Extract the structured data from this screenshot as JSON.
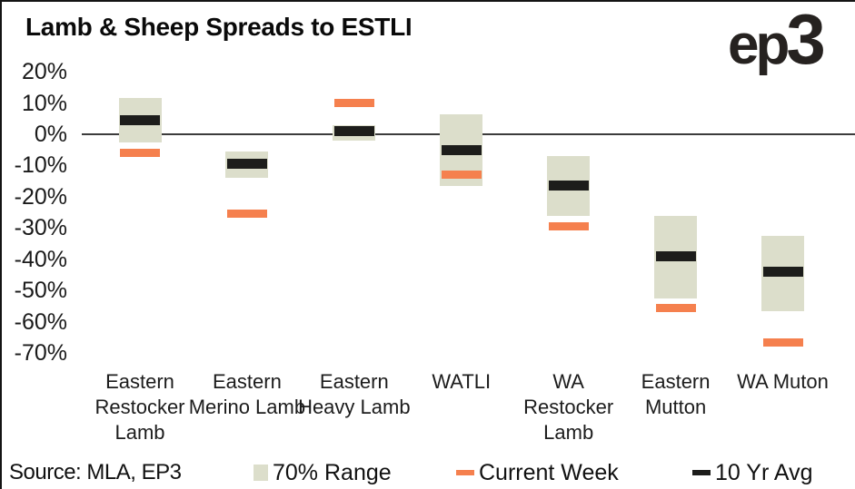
{
  "title": "Lamb & Sheep Spreads to ESTLI",
  "logo_text": {
    "ep": "ep",
    "three": "3"
  },
  "source_text": "Source: MLA, EP3",
  "legend": {
    "items": [
      {
        "label": "70% Range",
        "swatch": "box",
        "color": "#dcdecb"
      },
      {
        "label": "Current Week",
        "swatch": "dash",
        "color": "#f5804e"
      },
      {
        "label": "10 Yr Avg",
        "swatch": "dash",
        "color": "#1d1d1b"
      }
    ]
  },
  "colors": {
    "range_box": "#dcdecb",
    "current_week": "#f5804e",
    "ten_yr_avg": "#1d1d1b",
    "zero_line": "#3c3c3c"
  },
  "chart_data": {
    "type": "bar",
    "subtype": "floating 70%-range bars with current-week and 10yr-average dash markers",
    "title": "Lamb & Sheep Spreads to ESTLI",
    "categories": [
      "Eastern Restocker Lamb",
      "Eastern Merino Lamb",
      "Eastern Heavy Lamb",
      "WATLI",
      "WA Restocker Lamb",
      "Eastern Mutton",
      "WA Muton"
    ],
    "series": [
      {
        "name": "70% Range",
        "type": "range",
        "unit": "%",
        "values": [
          [
            11.5,
            -2.5
          ],
          [
            -5.5,
            -14
          ],
          [
            3,
            -2
          ],
          [
            6.5,
            -16.5
          ],
          [
            -7,
            -26
          ],
          [
            -26,
            -52.5
          ],
          [
            -32.5,
            -56.5
          ]
        ]
      },
      {
        "name": "Current Week",
        "type": "marker",
        "unit": "%",
        "values": [
          -6,
          -25.5,
          10,
          -13,
          -29.5,
          -55.5,
          -66.5
        ]
      },
      {
        "name": "10 Yr Avg",
        "type": "marker",
        "unit": "%",
        "values": [
          4.5,
          -9.5,
          1,
          -5,
          -16.5,
          -39,
          -44
        ]
      }
    ],
    "yticks": [
      20,
      10,
      0,
      -10,
      -20,
      -30,
      -40,
      -50,
      -60,
      -70
    ],
    "ylim": [
      -75,
      25
    ],
    "ytick_format": "{v}%",
    "xlabel": "",
    "ylabel": "",
    "grid": false,
    "legend_position": "bottom",
    "source": "Source: MLA, EP3"
  }
}
